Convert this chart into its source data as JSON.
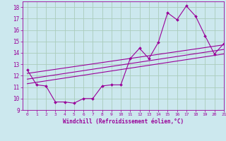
{
  "xlabel": "Windchill (Refroidissement éolien,°C)",
  "bg_color": "#cce8ee",
  "grid_color": "#aaccbb",
  "line_color": "#990099",
  "zigzag_x": [
    0,
    1,
    2,
    3,
    4,
    5,
    6,
    7,
    8,
    9,
    10,
    11,
    12,
    13,
    14,
    15,
    16,
    17,
    18,
    19,
    20,
    21
  ],
  "zigzag_y": [
    12.5,
    11.2,
    11.1,
    9.7,
    9.7,
    9.6,
    10.0,
    10.0,
    11.1,
    11.2,
    11.2,
    13.5,
    14.4,
    13.5,
    14.9,
    17.5,
    16.9,
    18.1,
    17.2,
    15.5,
    13.9,
    14.8
  ],
  "trend1_x": [
    0,
    21
  ],
  "trend1_y": [
    12.2,
    14.7
  ],
  "trend2_x": [
    0,
    21
  ],
  "trend2_y": [
    11.7,
    14.3
  ],
  "trend3_x": [
    0,
    21
  ],
  "trend3_y": [
    11.3,
    13.9
  ],
  "xlim": [
    -0.5,
    21
  ],
  "ylim": [
    9,
    18.5
  ],
  "xticks": [
    0,
    1,
    2,
    3,
    4,
    5,
    6,
    7,
    8,
    9,
    10,
    11,
    12,
    13,
    14,
    15,
    16,
    17,
    18,
    19,
    20,
    21
  ],
  "yticks": [
    9,
    10,
    11,
    12,
    13,
    14,
    15,
    16,
    17,
    18
  ]
}
